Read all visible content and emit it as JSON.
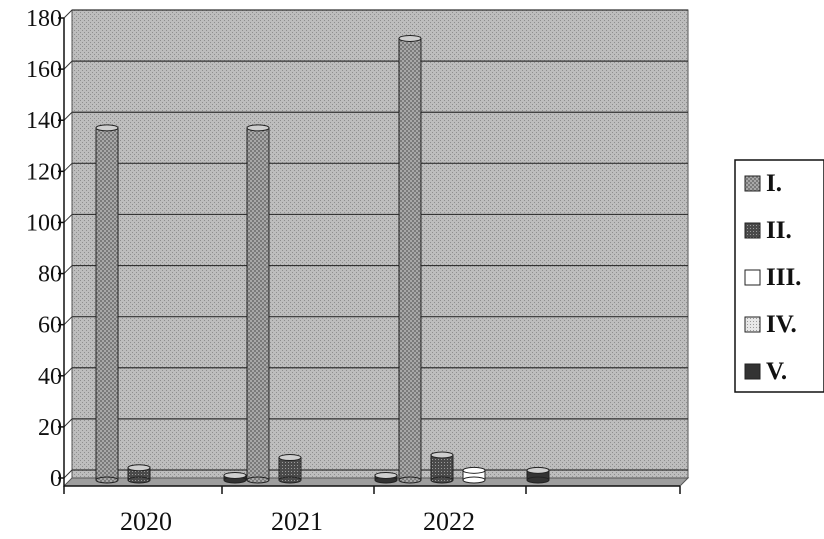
{
  "chart_data": {
    "type": "bar",
    "categories": [
      "2020",
      "2021",
      "2022"
    ],
    "ylim": [
      0,
      180
    ],
    "yticks": [
      0,
      20,
      40,
      60,
      80,
      100,
      120,
      140,
      160,
      180
    ],
    "grid": true,
    "legend_position": "right",
    "series": [
      {
        "name": "I.",
        "color": "#9a9a9a",
        "pattern": "light-hatch",
        "values": [
          137,
          137,
          172
        ]
      },
      {
        "name": "II.",
        "color": "#555555",
        "pattern": "dark-hatch",
        "values": [
          4,
          8,
          9
        ]
      },
      {
        "name": "III.",
        "color": "#ffffff",
        "pattern": "none",
        "values": [
          0,
          0,
          3
        ]
      },
      {
        "name": "IV.",
        "color": "#d8d8d8",
        "pattern": "dots",
        "values": [
          0,
          0,
          0
        ]
      },
      {
        "name": "V.",
        "color": "#333333",
        "pattern": "solid-dark",
        "values": [
          1,
          1,
          3
        ]
      }
    ]
  }
}
